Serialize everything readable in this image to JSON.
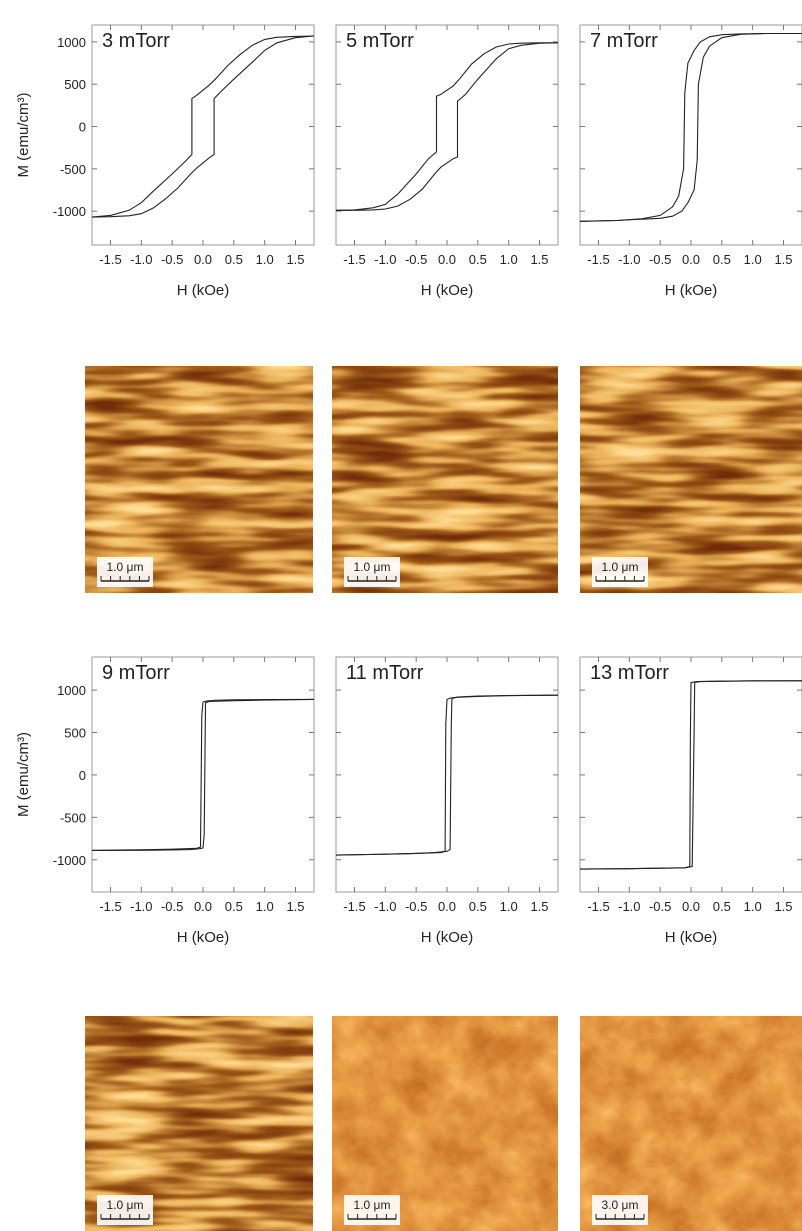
{
  "chart_data": [
    {
      "type": "line",
      "title": "3 mTorr",
      "xlabel": "H (kOe)",
      "ylabel": "M (emu/cm³)",
      "ytick_labels": true,
      "xlim": [
        -1.8,
        1.8
      ],
      "ylim": [
        -1400,
        1200
      ],
      "xticks": [
        -1.5,
        {
          "value": -1,
          "label": "-1.0"
        },
        -0.5,
        {
          "value": 0,
          "label": "0.0"
        },
        0.5,
        {
          "value": 1,
          "label": "1.0"
        },
        1.5
      ],
      "yticks": [
        -1000,
        -500,
        0,
        500,
        1000
      ],
      "series": [
        {
          "color": "#222222",
          "x": [
            1.8,
            1.5,
            1.2,
            1.0,
            0.8,
            0.6,
            0.4,
            0.2,
            0.1,
            0.0,
            -0.1,
            -0.18,
            -0.18,
            -0.3,
            -0.5,
            -0.8,
            -1.0,
            -1.2,
            -1.5,
            -1.8
          ],
          "values": [
            1070,
            1065,
            1055,
            1030,
            960,
            850,
            720,
            560,
            490,
            430,
            370,
            330,
            -330,
            -420,
            -560,
            -760,
            -900,
            -990,
            -1050,
            -1070
          ]
        },
        {
          "color": "#222222",
          "x": [
            -1.8,
            -1.5,
            -1.2,
            -1.0,
            -0.8,
            -0.6,
            -0.4,
            -0.2,
            -0.1,
            0.0,
            0.1,
            0.18,
            0.18,
            0.3,
            0.5,
            0.8,
            1.0,
            1.2,
            1.5,
            1.8
          ],
          "values": [
            -1070,
            -1065,
            -1055,
            -1030,
            -960,
            -850,
            -720,
            -560,
            -490,
            -430,
            -370,
            -330,
            330,
            420,
            560,
            760,
            900,
            990,
            1050,
            1070
          ]
        }
      ]
    },
    {
      "type": "line",
      "title": "5 mTorr",
      "xlabel": "H (kOe)",
      "ytick_labels": false,
      "xlim": [
        -1.8,
        1.8
      ],
      "ylim": [
        -1400,
        1200
      ],
      "xticks": [
        -1.5,
        {
          "value": -1,
          "label": "-1.0"
        },
        -0.5,
        {
          "value": 0,
          "label": "0.0"
        },
        0.5,
        {
          "value": 1,
          "label": "1.0"
        },
        1.5
      ],
      "yticks": [
        -1000,
        -500,
        0,
        500,
        1000
      ],
      "series": [
        {
          "color": "#222222",
          "x": [
            1.8,
            1.5,
            1.2,
            1.0,
            0.8,
            0.6,
            0.4,
            0.2,
            0.1,
            0.0,
            -0.1,
            -0.17,
            -0.17,
            -0.3,
            -0.5,
            -0.8,
            -1.0,
            -1.2,
            -1.5,
            -1.8
          ],
          "values": [
            990,
            990,
            985,
            975,
            940,
            860,
            740,
            560,
            480,
            430,
            380,
            360,
            -300,
            -380,
            -560,
            -800,
            -920,
            -960,
            -985,
            -990
          ]
        },
        {
          "color": "#222222",
          "x": [
            -1.8,
            -1.5,
            -1.2,
            -1.0,
            -0.8,
            -0.6,
            -0.4,
            -0.2,
            -0.1,
            0.0,
            0.1,
            0.17,
            0.17,
            0.3,
            0.5,
            0.8,
            1.0,
            1.2,
            1.5,
            1.8
          ],
          "values": [
            -990,
            -990,
            -985,
            -975,
            -940,
            -860,
            -740,
            -560,
            -480,
            -430,
            -380,
            -360,
            300,
            380,
            560,
            800,
            920,
            960,
            985,
            990
          ]
        }
      ]
    },
    {
      "type": "line",
      "title": "7 mTorr",
      "xlabel": "H (kOe)",
      "ytick_labels": false,
      "xlim": [
        -1.8,
        1.8
      ],
      "ylim": [
        -1400,
        1200
      ],
      "xticks": [
        -1.5,
        {
          "value": -1,
          "label": "-1.0"
        },
        -0.5,
        {
          "value": 0,
          "label": "0.0"
        },
        0.5,
        {
          "value": 1,
          "label": "1.0"
        },
        1.5
      ],
      "yticks": [
        -1000,
        -500,
        0,
        500,
        1000
      ],
      "series": [
        {
          "color": "#222222",
          "x": [
            1.8,
            1.2,
            0.8,
            0.5,
            0.3,
            0.15,
            0.05,
            -0.05,
            -0.1,
            -0.12,
            -0.2,
            -0.3,
            -0.5,
            -0.8,
            -1.2,
            -1.8
          ],
          "values": [
            1100,
            1100,
            1095,
            1085,
            1060,
            1000,
            900,
            750,
            400,
            -500,
            -820,
            -950,
            -1050,
            -1090,
            -1110,
            -1120
          ]
        },
        {
          "color": "#222222",
          "x": [
            -1.8,
            -1.2,
            -0.8,
            -0.5,
            -0.3,
            -0.15,
            -0.05,
            0.05,
            0.1,
            0.12,
            0.2,
            0.3,
            0.5,
            0.8,
            1.2,
            1.8
          ],
          "values": [
            -1120,
            -1110,
            -1095,
            -1085,
            -1060,
            -1000,
            -900,
            -750,
            -400,
            500,
            820,
            950,
            1050,
            1090,
            1100,
            1100
          ]
        }
      ]
    },
    {
      "type": "line",
      "title": "9 mTorr",
      "xlabel": "H (kOe)",
      "ylabel": "M (emu/cm³)",
      "ytick_labels": true,
      "xlim": [
        -1.8,
        1.8
      ],
      "ylim": [
        -1380,
        1390
      ],
      "xticks": [
        -1.5,
        {
          "value": -1,
          "label": "-1.0"
        },
        -0.5,
        {
          "value": 0,
          "label": "0.0"
        },
        0.5,
        {
          "value": 1,
          "label": "1.0"
        },
        1.5
      ],
      "yticks": [
        -1000,
        -500,
        0,
        500,
        1000
      ],
      "series": [
        {
          "color": "#222222",
          "x": [
            1.8,
            1.0,
            0.5,
            0.2,
            0.05,
            0.0,
            -0.02,
            -0.04,
            -0.1,
            -0.5,
            -1.0,
            -1.8
          ],
          "values": [
            890,
            888,
            885,
            880,
            870,
            860,
            700,
            -850,
            -865,
            -875,
            -882,
            -890
          ]
        },
        {
          "color": "#222222",
          "x": [
            -1.8,
            -1.0,
            -0.5,
            -0.2,
            -0.05,
            0.0,
            0.02,
            0.04,
            0.1,
            0.5,
            1.0,
            1.8
          ],
          "values": [
            -890,
            -888,
            -885,
            -880,
            -870,
            -860,
            -700,
            850,
            865,
            875,
            882,
            890
          ]
        }
      ]
    },
    {
      "type": "line",
      "title": "11 mTorr",
      "xlabel": "H (kOe)",
      "ytick_labels": false,
      "xlim": [
        -1.8,
        1.8
      ],
      "ylim": [
        -1380,
        1390
      ],
      "xticks": [
        -1.5,
        {
          "value": -1,
          "label": "-1.0"
        },
        -0.5,
        {
          "value": 0,
          "label": "0.0"
        },
        0.5,
        {
          "value": 1,
          "label": "1.0"
        },
        1.5
      ],
      "yticks": [
        -1000,
        -500,
        0,
        500,
        1000
      ],
      "series": [
        {
          "color": "#222222",
          "x": [
            1.8,
            1.0,
            0.5,
            0.2,
            0.05,
            0.0,
            -0.02,
            -0.03,
            -0.1,
            -0.5,
            -1.0,
            -1.8
          ],
          "values": [
            940,
            935,
            930,
            920,
            905,
            890,
            600,
            -900,
            -915,
            -925,
            -935,
            -945
          ]
        },
        {
          "color": "#222222",
          "x": [
            -1.8,
            -1.0,
            -0.5,
            -0.2,
            0.0,
            0.05,
            0.07,
            0.08,
            0.15,
            0.5,
            1.0,
            1.8
          ],
          "values": [
            -945,
            -935,
            -925,
            -915,
            -900,
            -880,
            600,
            900,
            915,
            925,
            935,
            940
          ]
        }
      ]
    },
    {
      "type": "line",
      "title": "13 mTorr",
      "xlabel": "H (kOe)",
      "ytick_labels": false,
      "xlim": [
        -1.8,
        1.8
      ],
      "ylim": [
        -1380,
        1390
      ],
      "xticks": [
        -1.5,
        {
          "value": -1,
          "label": "-1.0"
        },
        -0.5,
        {
          "value": 0,
          "label": "0.0"
        },
        0.5,
        {
          "value": 1,
          "label": "1.0"
        },
        1.5
      ],
      "yticks": [
        -1000,
        -500,
        0,
        500,
        1000
      ],
      "series": [
        {
          "color": "#222222",
          "x": [
            1.8,
            1.0,
            0.5,
            0.1,
            0.0,
            -0.01,
            -0.02,
            -0.1,
            -0.5,
            -1.0,
            -1.8
          ],
          "values": [
            1110,
            1110,
            1105,
            1100,
            1090,
            500,
            -1080,
            -1095,
            -1100,
            -1105,
            -1110
          ]
        },
        {
          "color": "#222222",
          "x": [
            -1.8,
            -1.0,
            -0.5,
            -0.1,
            0.02,
            0.05,
            0.06,
            0.15,
            0.5,
            1.0,
            1.8
          ],
          "values": [
            -1110,
            -1105,
            -1100,
            -1095,
            -1080,
            500,
            1090,
            1100,
            1105,
            1108,
            1110
          ]
        }
      ]
    }
  ],
  "micrographs": [
    {
      "scale_bar": "1.0 μm"
    },
    {
      "scale_bar": "1.0 μm"
    },
    {
      "scale_bar": "1.0 μm"
    },
    {
      "scale_bar": "1.0 μm"
    },
    {
      "scale_bar": "1.0 μm"
    },
    {
      "scale_bar": "3.0 μm"
    }
  ]
}
